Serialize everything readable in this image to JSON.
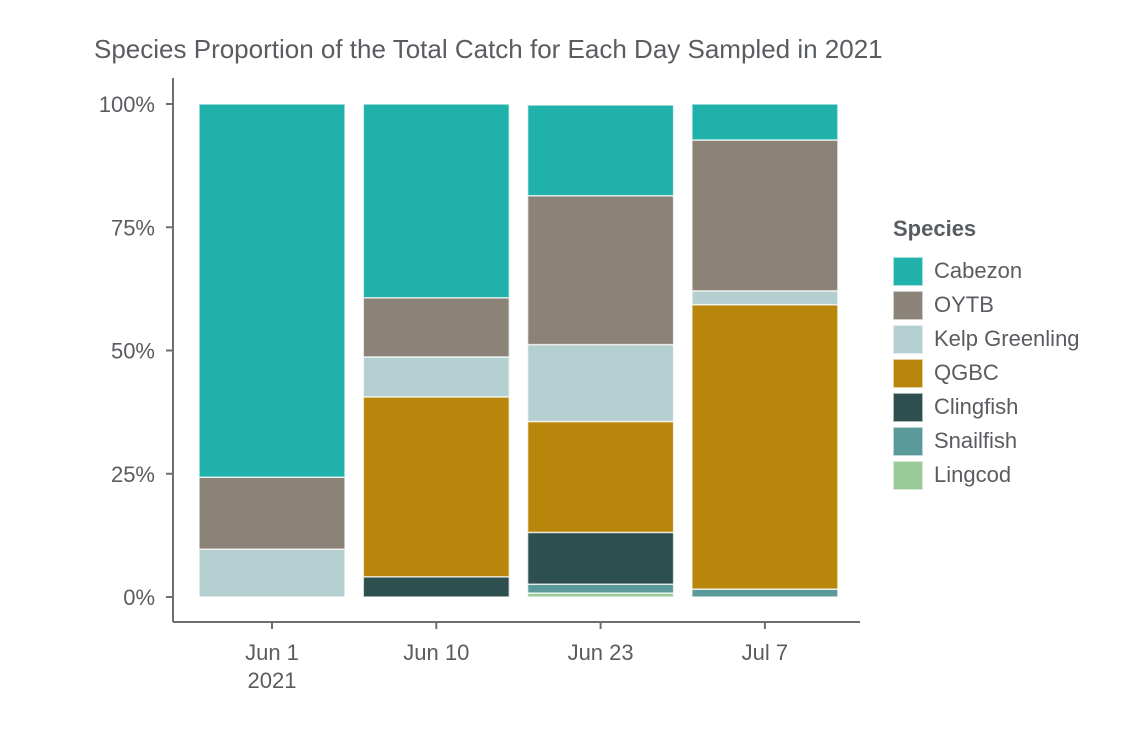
{
  "chart_data": {
    "type": "bar",
    "stacked": "percent",
    "title": "Species Proportion of the Total Catch for Each Day Sampled in 2021",
    "xlabel": "",
    "ylabel": "",
    "ylim": [
      0,
      100
    ],
    "yticks": [
      0,
      25,
      50,
      75,
      100
    ],
    "ytick_labels": [
      "0%",
      "25%",
      "50%",
      "75%",
      "100%"
    ],
    "categories": [
      "Jun 1",
      "Jun 10",
      "Jun 23",
      "Jul 7"
    ],
    "category_sublabels": [
      "2021",
      "",
      "",
      ""
    ],
    "legend_title": "Species",
    "legend_position": "right",
    "grid": false,
    "series": [
      {
        "name": "Lingcod",
        "color": "#98cb98",
        "values": [
          0,
          0,
          0.8,
          0
        ]
      },
      {
        "name": "Snailfish",
        "color": "#5b9a9a",
        "values": [
          0,
          0,
          1.8,
          1.6
        ]
      },
      {
        "name": "Clingfish",
        "color": "#2e4f4f",
        "values": [
          0,
          4.1,
          10.5,
          0
        ]
      },
      {
        "name": "QGBC",
        "color": "#b8860b",
        "values": [
          0,
          36.5,
          22.5,
          57.7
        ]
      },
      {
        "name": "Kelp Greenling",
        "color": "#b4cfd0",
        "values": [
          9.7,
          8.1,
          15.6,
          2.8
        ]
      },
      {
        "name": "OYTB",
        "color": "#8b8378",
        "values": [
          14.6,
          12.0,
          30.2,
          30.6
        ]
      },
      {
        "name": "Cabezon",
        "color": "#20b2aa",
        "values": [
          75.7,
          39.3,
          18.4,
          7.3
        ]
      }
    ],
    "legend_order": [
      "Cabezon",
      "OYTB",
      "Kelp Greenling",
      "QGBC",
      "Clingfish",
      "Snailfish",
      "Lingcod"
    ]
  }
}
